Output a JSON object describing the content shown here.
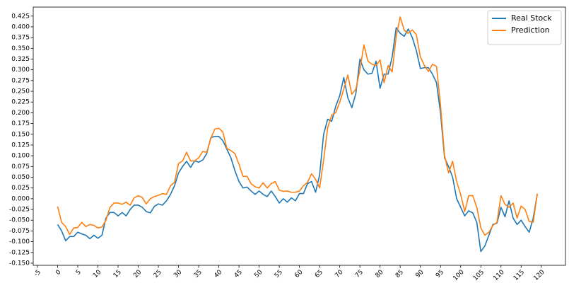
{
  "chart_data": {
    "type": "line",
    "x": [
      0,
      1,
      2,
      3,
      4,
      5,
      6,
      7,
      8,
      9,
      10,
      11,
      12,
      13,
      14,
      15,
      16,
      17,
      18,
      19,
      20,
      21,
      22,
      23,
      24,
      25,
      26,
      27,
      28,
      29,
      30,
      31,
      32,
      33,
      34,
      35,
      36,
      37,
      38,
      39,
      40,
      41,
      42,
      43,
      44,
      45,
      46,
      47,
      48,
      49,
      50,
      51,
      52,
      53,
      54,
      55,
      56,
      57,
      58,
      59,
      60,
      61,
      62,
      63,
      64,
      65,
      66,
      67,
      68,
      69,
      70,
      71,
      72,
      73,
      74,
      75,
      76,
      77,
      78,
      79,
      80,
      81,
      82,
      83,
      84,
      85,
      86,
      87,
      88,
      89,
      90,
      91,
      92,
      93,
      94,
      95,
      96,
      97,
      98,
      99,
      100,
      101,
      102,
      103,
      104,
      105,
      106,
      107,
      108,
      109,
      110,
      111,
      112,
      113,
      114,
      115,
      116,
      117,
      118,
      119
    ],
    "series": [
      {
        "name": "Real Stock",
        "color": "#1f77b4",
        "values": [
          -0.06,
          -0.075,
          -0.098,
          -0.088,
          -0.088,
          -0.078,
          -0.082,
          -0.085,
          -0.093,
          -0.085,
          -0.092,
          -0.085,
          -0.045,
          -0.032,
          -0.032,
          -0.04,
          -0.032,
          -0.04,
          -0.025,
          -0.015,
          -0.015,
          -0.02,
          -0.03,
          -0.033,
          -0.018,
          -0.012,
          -0.015,
          -0.005,
          0.01,
          0.03,
          0.06,
          0.075,
          0.087,
          0.073,
          0.088,
          0.085,
          0.09,
          0.105,
          0.142,
          0.145,
          0.145,
          0.135,
          0.115,
          0.095,
          0.065,
          0.04,
          0.025,
          0.027,
          0.018,
          0.01,
          0.018,
          0.01,
          0.005,
          0.018,
          0.005,
          -0.01,
          0.0,
          -0.008,
          0.002,
          -0.005,
          0.012,
          0.012,
          0.035,
          0.04,
          0.015,
          0.055,
          0.15,
          0.185,
          0.18,
          0.215,
          0.24,
          0.282,
          0.235,
          0.212,
          0.245,
          0.325,
          0.3,
          0.29,
          0.292,
          0.32,
          0.257,
          0.29,
          0.29,
          0.33,
          0.398,
          0.385,
          0.378,
          0.395,
          0.375,
          0.345,
          0.303,
          0.305,
          0.305,
          0.29,
          0.27,
          0.2,
          0.095,
          0.075,
          0.05,
          0.0,
          -0.02,
          -0.04,
          -0.028,
          -0.033,
          -0.055,
          -0.123,
          -0.11,
          -0.085,
          -0.06,
          -0.057,
          -0.02,
          -0.042,
          -0.005,
          -0.045,
          -0.06,
          -0.05,
          -0.065,
          -0.078,
          -0.045,
          0.01
        ]
      },
      {
        "name": "Prediction",
        "color": "#ff7f0e",
        "values": [
          -0.018,
          -0.055,
          -0.065,
          -0.083,
          -0.068,
          -0.067,
          -0.055,
          -0.065,
          -0.06,
          -0.062,
          -0.068,
          -0.066,
          -0.05,
          -0.02,
          -0.01,
          -0.01,
          -0.013,
          -0.008,
          -0.015,
          0.002,
          0.007,
          0.003,
          -0.012,
          0.0,
          0.005,
          0.008,
          0.012,
          0.01,
          0.03,
          0.038,
          0.082,
          0.088,
          0.108,
          0.088,
          0.088,
          0.095,
          0.11,
          0.108,
          0.14,
          0.162,
          0.164,
          0.155,
          0.117,
          0.112,
          0.105,
          0.08,
          0.052,
          0.052,
          0.035,
          0.028,
          0.025,
          0.037,
          0.025,
          0.035,
          0.04,
          0.02,
          0.017,
          0.018,
          0.015,
          0.015,
          0.018,
          0.03,
          0.038,
          0.058,
          0.045,
          0.025,
          0.09,
          0.165,
          0.195,
          0.2,
          0.225,
          0.255,
          0.288,
          0.243,
          0.255,
          0.3,
          0.358,
          0.32,
          0.313,
          0.31,
          0.323,
          0.27,
          0.31,
          0.295,
          0.378,
          0.423,
          0.392,
          0.385,
          0.393,
          0.382,
          0.33,
          0.31,
          0.296,
          0.313,
          0.308,
          0.218,
          0.1,
          0.06,
          0.087,
          0.04,
          0.01,
          -0.03,
          0.007,
          0.007,
          -0.02,
          -0.068,
          -0.085,
          -0.078,
          -0.062,
          -0.055,
          0.007,
          -0.013,
          -0.02,
          -0.01,
          -0.045,
          -0.017,
          -0.025,
          -0.053,
          -0.055,
          0.012
        ]
      }
    ],
    "xlim": [
      -6.05,
      126
    ],
    "xticks": [
      -5,
      0,
      5,
      10,
      15,
      20,
      25,
      30,
      35,
      40,
      45,
      50,
      55,
      60,
      65,
      70,
      75,
      80,
      85,
      90,
      95,
      100,
      105,
      110,
      115,
      120
    ],
    "ylim": [
      -0.155,
      0.446
    ],
    "yticks": [
      {
        "value": -0.15,
        "label": "-0.150"
      },
      {
        "value": -0.125,
        "label": "-0.125"
      },
      {
        "value": -0.1,
        "label": "-0.100"
      },
      {
        "value": -0.075,
        "label": "-0.075"
      },
      {
        "value": -0.05,
        "label": "-0.050"
      },
      {
        "value": -0.025,
        "label": "-0.025"
      },
      {
        "value": 0,
        "label": "0.000"
      },
      {
        "value": 0.025,
        "label": "0.025"
      },
      {
        "value": 0.05,
        "label": "0.050"
      },
      {
        "value": 0.075,
        "label": "0.075"
      },
      {
        "value": 0.1,
        "label": "0.100"
      },
      {
        "value": 0.125,
        "label": "0.125"
      },
      {
        "value": 0.15,
        "label": "0.150"
      },
      {
        "value": 0.175,
        "label": "0.175"
      },
      {
        "value": 0.2,
        "label": "0.200"
      },
      {
        "value": 0.225,
        "label": "0.225"
      },
      {
        "value": 0.25,
        "label": "0.250"
      },
      {
        "value": 0.275,
        "label": "0.275"
      },
      {
        "value": 0.3,
        "label": "0.300"
      },
      {
        "value": 0.325,
        "label": "0.325"
      },
      {
        "value": 0.35,
        "label": "0.350"
      },
      {
        "value": 0.375,
        "label": "0.375"
      },
      {
        "value": 0.4,
        "label": "0.400"
      },
      {
        "value": 0.425,
        "label": "0.425"
      }
    ],
    "grid": false,
    "legend": "upper-right"
  }
}
